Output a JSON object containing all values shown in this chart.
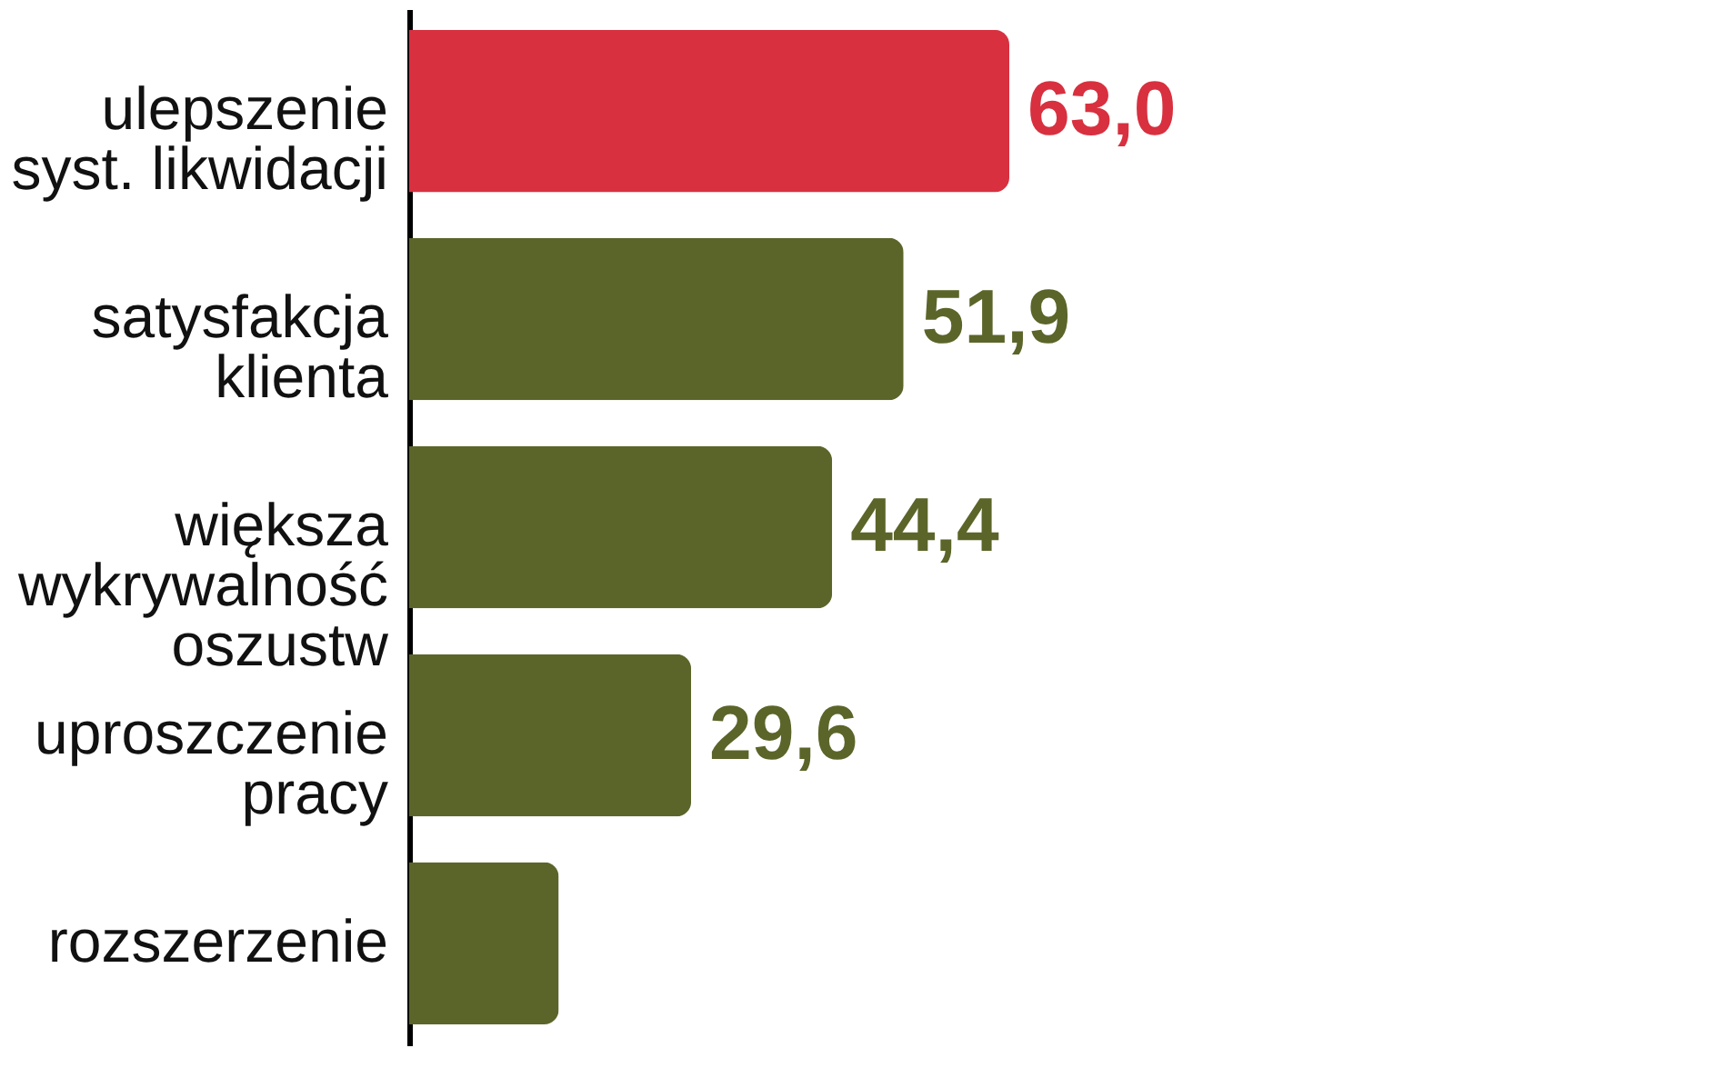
{
  "chart_data": {
    "type": "bar",
    "orientation": "horizontal",
    "categories": [
      "ulepszenie\nsyst. likwidacji",
      "satysfakcja\nklienta",
      "większa\nwykrywalność\noszustw",
      "uproszczenie\npracy",
      "rozszerzenie"
    ],
    "values": [
      63.0,
      51.9,
      44.4,
      29.6,
      15.7
    ],
    "value_labels": [
      "63,0",
      "51,9",
      "44,4",
      "29,6",
      null
    ],
    "colors": [
      "#d8303f",
      "#5b6529",
      "#5b6529",
      "#5b6529",
      "#5b6529"
    ],
    "grid": false,
    "tick_labels": "y"
  }
}
